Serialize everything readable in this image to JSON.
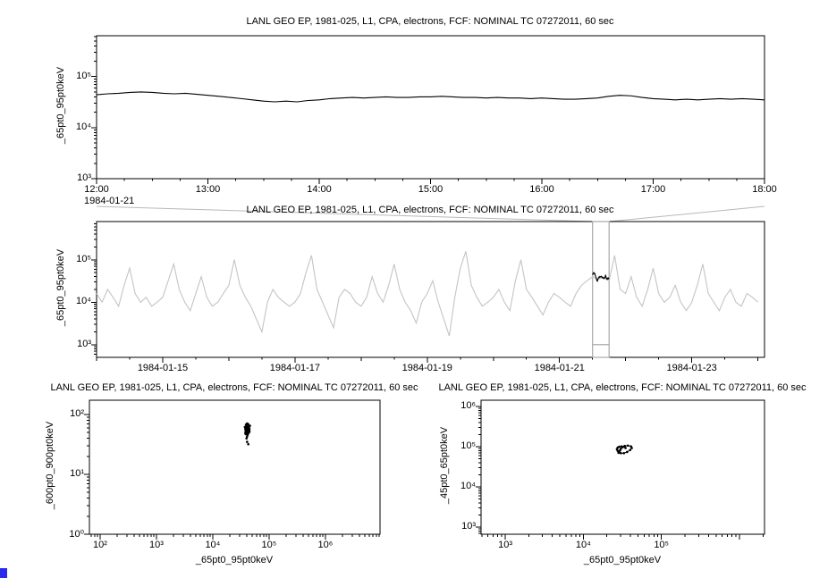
{
  "window": {
    "background": "#ffffff",
    "corner_accent_color": "#2a2aee",
    "context_line_color": "#b8b8b8",
    "selection_box_color": "#a9a9a9"
  },
  "chart_data": [
    {
      "id": "top",
      "type": "line",
      "title": "LANL GEO EP, 1981-025, L1, CPA, electrons, FCF: NOMINAL TC 07272011, 60 sec",
      "ylabel": "_65pt0_95pt0keV",
      "x_axis": {
        "kind": "time-hours",
        "min": 12,
        "max": 18,
        "minor_step": 0.25,
        "major_ticks": [
          12,
          13,
          14,
          15,
          16,
          17,
          18
        ],
        "major_labels": [
          "12:00",
          "13:00",
          "14:00",
          "15:00",
          "16:00",
          "17:00",
          "18:00"
        ],
        "date_label": "1984-01-21"
      },
      "y_axis": {
        "kind": "log",
        "min": 3,
        "max": 5.8,
        "labeled_exps": [
          3,
          4,
          5
        ]
      },
      "series": [
        {
          "name": "electron-flux-65-95keV-selected-interval",
          "color": "#000000",
          "style": "line",
          "x_start": 12,
          "x_step": 0.1,
          "values": [
            44000,
            46000,
            47000,
            49000,
            50000,
            49000,
            47000,
            46000,
            47000,
            45000,
            43000,
            41000,
            39000,
            37000,
            35000,
            33000,
            32000,
            33000,
            32000,
            34000,
            35000,
            37000,
            38000,
            39000,
            38000,
            39000,
            40000,
            39000,
            39000,
            40000,
            40000,
            41000,
            40000,
            39000,
            39000,
            38000,
            39000,
            38000,
            38000,
            37000,
            38000,
            37000,
            36000,
            36000,
            37000,
            38000,
            41000,
            43000,
            42000,
            39000,
            37000,
            36000,
            35000,
            36000,
            35000,
            36000,
            37000,
            36000,
            37000,
            36000,
            35000
          ]
        }
      ]
    },
    {
      "id": "middle",
      "type": "line",
      "title": "LANL GEO EP, 1981-025, L1, CPA, electrons, FCF: NOMINAL TC 07272011, 60 sec",
      "ylabel": "_65pt0_95pt0keV",
      "x_axis": {
        "kind": "time-days",
        "min": 14.0,
        "max": 24.1,
        "minor_step": 0.5,
        "major_ticks": [
          15,
          17,
          19,
          21,
          23
        ],
        "major_labels": [
          "1984-01-15",
          "1984-01-17",
          "1984-01-19",
          "1984-01-21",
          "1984-01-23"
        ],
        "day_ticks": [
          14,
          16,
          18,
          20,
          22,
          24
        ]
      },
      "y_axis": {
        "kind": "log",
        "min": 2.7,
        "max": 5.9,
        "labeled_exps": [
          3,
          4,
          5
        ]
      },
      "selection": {
        "day_start": 21.5,
        "day_end": 21.75,
        "marker_exp": 3.0
      },
      "series": [
        {
          "name": "electron-flux-65-95keV-context",
          "color": "#c4c4c4",
          "style": "line",
          "x_start": 14.0,
          "x_step": 0.0833333,
          "values": [
            16000,
            10000,
            20000,
            13000,
            8000,
            25000,
            63000,
            16000,
            10000,
            13000,
            8000,
            10000,
            13000,
            32000,
            79000,
            20000,
            10000,
            6300,
            16000,
            40000,
            13000,
            8000,
            10000,
            16000,
            25000,
            100000,
            25000,
            13000,
            8000,
            4000,
            2000,
            10000,
            20000,
            13000,
            10000,
            8000,
            10000,
            16000,
            50000,
            126000,
            20000,
            10000,
            5000,
            2500,
            13000,
            20000,
            16000,
            10000,
            8000,
            13000,
            40000,
            16000,
            10000,
            25000,
            79000,
            20000,
            10000,
            6300,
            3200,
            10000,
            16000,
            32000,
            10000,
            4000,
            1600,
            13000,
            63000,
            158000,
            25000,
            13000,
            8000,
            10000,
            13000,
            20000,
            10000,
            6300,
            32000,
            100000,
            20000,
            13000,
            8000,
            5000,
            10000,
            16000,
            13000,
            10000,
            8000,
            16000,
            25000,
            32000,
            40000,
            35000,
            38000,
            32000,
            126000,
            20000,
            16000,
            40000,
            13000,
            8000,
            20000,
            63000,
            16000,
            10000,
            13000,
            25000,
            10000,
            6300,
            10000,
            25000,
            79000,
            16000,
            10000,
            6300,
            13000,
            20000,
            10000,
            8000,
            16000,
            13000,
            10000
          ]
        },
        {
          "name": "electron-flux-65-95keV-selected-overlay",
          "color": "#000000",
          "style": "line",
          "derive": "top-hours"
        }
      ]
    },
    {
      "id": "bottom_left",
      "type": "scatter",
      "title": "LANL GEO EP, 1981-025, L1, CPA, electrons, FCF: NOMINAL TC 07272011, 60 sec",
      "xlabel": "_65pt0_95pt0keV",
      "ylabel": "_600pt0_900pt0keV",
      "x_axis": {
        "kind": "log",
        "min": 1.81,
        "max": 6.97,
        "labeled_exps": [
          2,
          3,
          4,
          5,
          6
        ]
      },
      "y_axis": {
        "kind": "log",
        "min": 0,
        "max": 2.24,
        "labeled_exps": [
          0,
          1,
          2
        ]
      },
      "series": [
        {
          "name": "flux-600-900keV-vs-65-95keV",
          "color": "#000000",
          "style": "scatter",
          "points": [
            [
              39800,
              60
            ],
            [
              41700,
              63
            ],
            [
              38000,
              56
            ],
            [
              43700,
              52
            ],
            [
              40700,
              71
            ],
            [
              42700,
              59
            ],
            [
              38900,
              50
            ],
            [
              44700,
              55
            ],
            [
              39800,
              48
            ],
            [
              41700,
              54
            ],
            [
              37200,
              62
            ],
            [
              45700,
              65
            ],
            [
              40700,
              58
            ],
            [
              42700,
              49
            ],
            [
              38900,
              68
            ],
            [
              43700,
              60
            ],
            [
              39800,
              52
            ],
            [
              41700,
              46
            ],
            [
              38000,
              51
            ],
            [
              44700,
              59
            ],
            [
              40700,
              63
            ],
            [
              42700,
              55
            ],
            [
              38900,
              47
            ],
            [
              39800,
              56
            ],
            [
              43700,
              50
            ],
            [
              41700,
              66
            ],
            [
              38000,
              59
            ],
            [
              40700,
              43
            ],
            [
              42700,
              62
            ],
            [
              44700,
              52
            ],
            [
              38900,
              55
            ],
            [
              39800,
              65
            ],
            [
              41700,
              49
            ],
            [
              43700,
              58
            ],
            [
              40700,
              51
            ],
            [
              38000,
              48
            ],
            [
              42700,
              69
            ],
            [
              39800,
              40
            ],
            [
              41700,
              56
            ],
            [
              38900,
              60
            ],
            [
              40700,
              35
            ],
            [
              42700,
              32
            ]
          ]
        }
      ]
    },
    {
      "id": "bottom_right",
      "type": "scatter",
      "title": "LANL GEO EP, 1981-025, L1, CPA, electrons, FCF: NOMINAL TC 07272011, 60 sec",
      "xlabel": "_65pt0_95pt0keV",
      "ylabel": "_45pt0_65pt0keV",
      "x_axis": {
        "kind": "log",
        "min": 2.69,
        "max": 6.32,
        "labeled_exps": [
          3,
          4,
          5
        ]
      },
      "y_axis": {
        "kind": "log",
        "min": 2.82,
        "max": 6.16,
        "labeled_exps": [
          3,
          4,
          5,
          6
        ]
      },
      "series": [
        {
          "name": "flux-45-65keV-vs-65-95keV",
          "color": "#000000",
          "style": "scatter-line",
          "points": [
            [
              28200,
              70800
            ],
            [
              30200,
              69200
            ],
            [
              33100,
              69200
            ],
            [
              36300,
              74100
            ],
            [
              39800,
              83200
            ],
            [
              41700,
              93300
            ],
            [
              40700,
              102300
            ],
            [
              37200,
              107200
            ],
            [
              33900,
              104700
            ],
            [
              31600,
              97700
            ],
            [
              30200,
              89100
            ],
            [
              29500,
              81300
            ],
            [
              28800,
              75900
            ],
            [
              27500,
              79400
            ],
            [
              26900,
              87100
            ],
            [
              27500,
              95500
            ],
            [
              28800,
              100000
            ],
            [
              30900,
              102300
            ],
            [
              33100,
              100000
            ],
            [
              34700,
              93300
            ]
          ]
        }
      ]
    }
  ]
}
